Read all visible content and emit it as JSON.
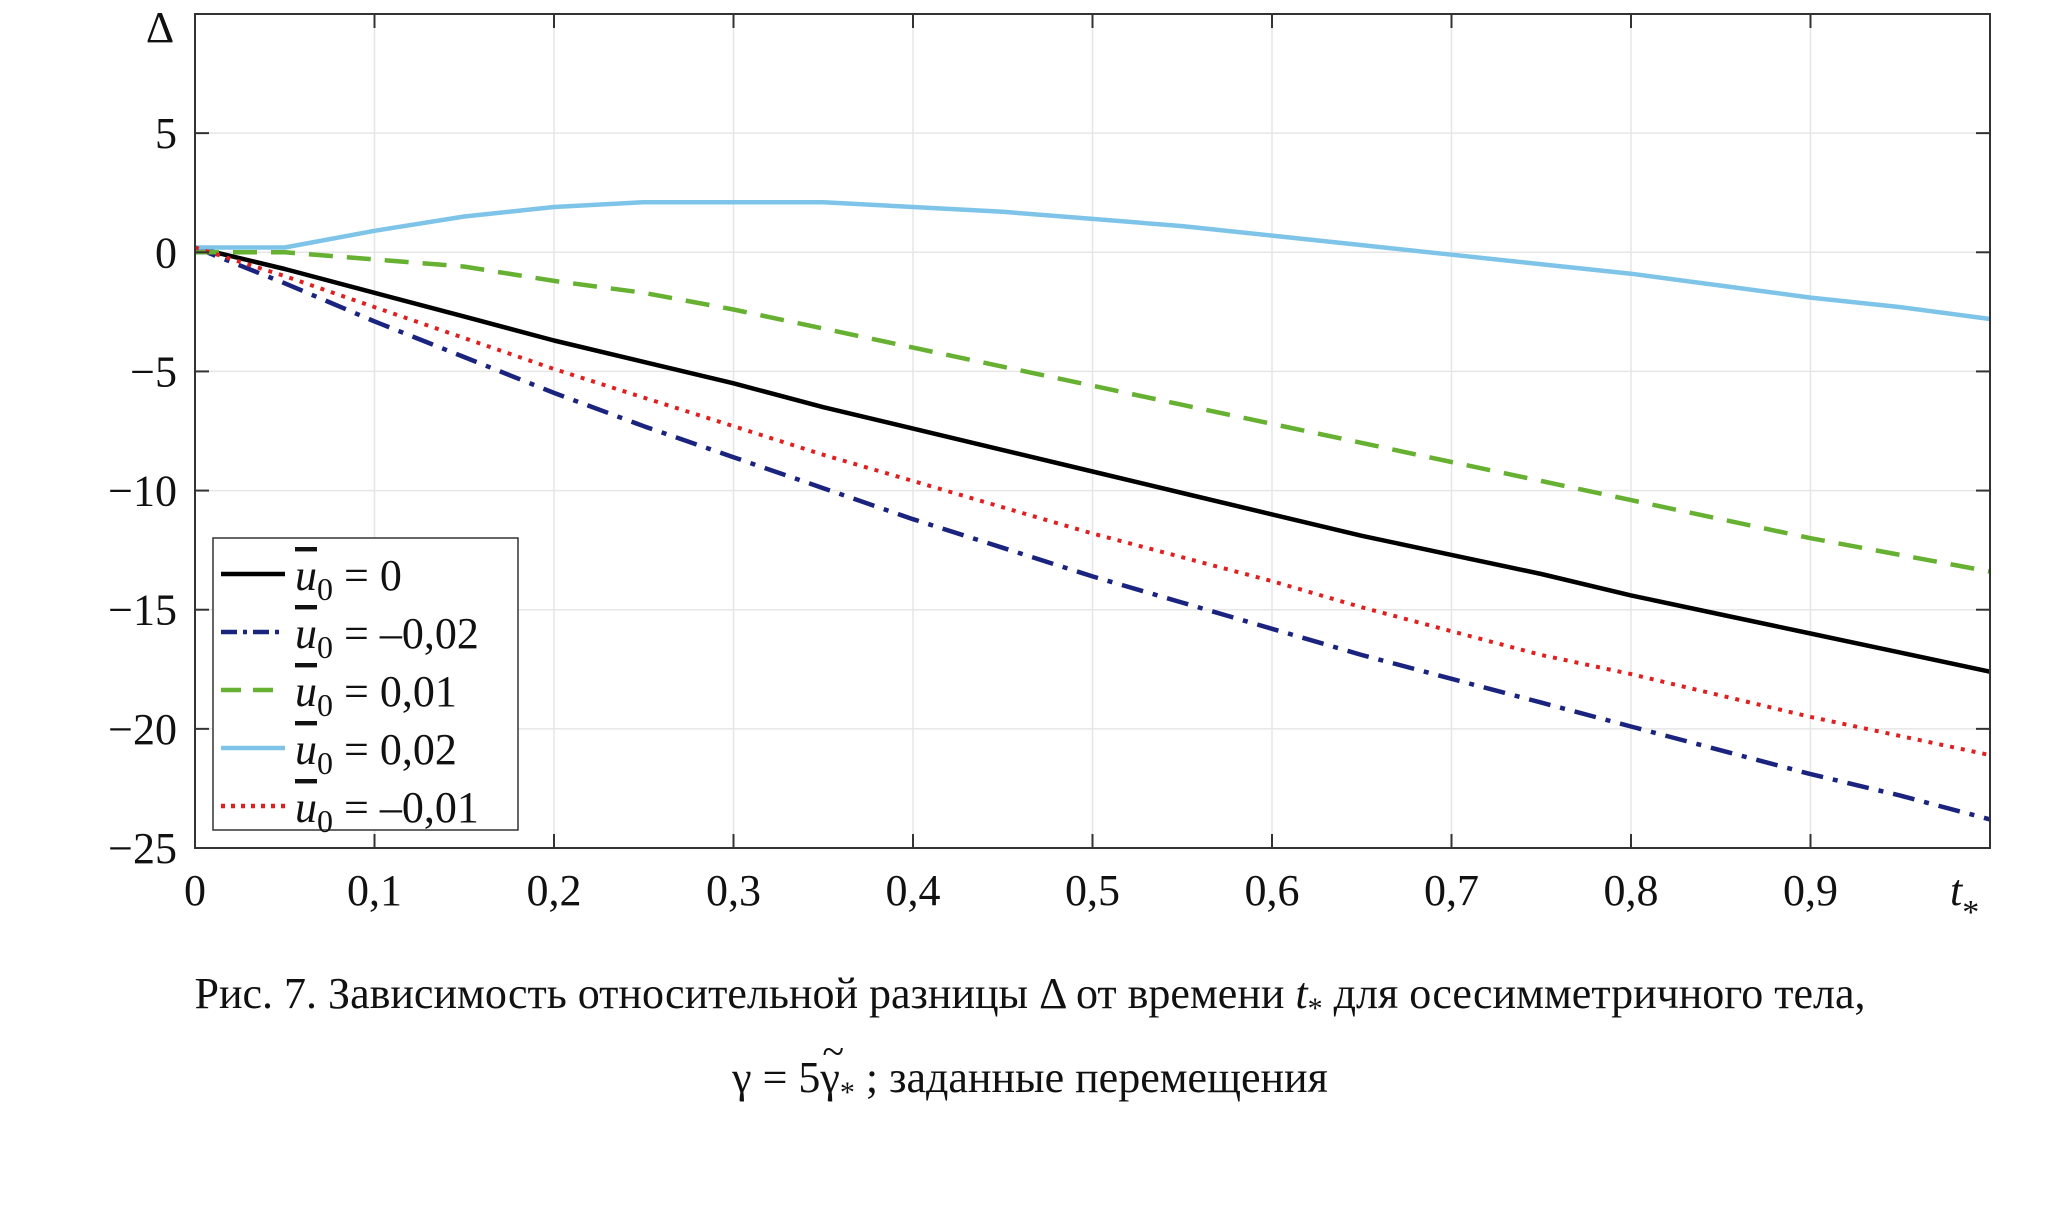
{
  "chart_data": {
    "type": "line",
    "ylabel": "Δ",
    "xlabel_main": "t",
    "xlabel_sub": "*",
    "xlim": [
      0,
      1
    ],
    "ylim": [
      -25,
      10
    ],
    "grid": true,
    "legend_position": "bottom-left",
    "x_ticks": [
      {
        "value": 0,
        "label": "0"
      },
      {
        "value": 0.1,
        "label": "0,1"
      },
      {
        "value": 0.2,
        "label": "0,2"
      },
      {
        "value": 0.3,
        "label": "0,3"
      },
      {
        "value": 0.4,
        "label": "0,4"
      },
      {
        "value": 0.5,
        "label": "0,5"
      },
      {
        "value": 0.6,
        "label": "0,6"
      },
      {
        "value": 0.7,
        "label": "0,7"
      },
      {
        "value": 0.8,
        "label": "0,8"
      },
      {
        "value": 0.9,
        "label": "0,9"
      }
    ],
    "y_ticks": [
      {
        "value": 5,
        "label": "5"
      },
      {
        "value": 0,
        "label": "0"
      },
      {
        "value": -5,
        "label": "−5"
      },
      {
        "value": -10,
        "label": "−10"
      },
      {
        "value": -15,
        "label": "−15"
      },
      {
        "value": -20,
        "label": "−20"
      },
      {
        "value": -25,
        "label": "−25"
      }
    ],
    "x": [
      0,
      0.05,
      0.1,
      0.15,
      0.2,
      0.25,
      0.3,
      0.35,
      0.4,
      0.45,
      0.5,
      0.55,
      0.6,
      0.65,
      0.7,
      0.75,
      0.8,
      0.85,
      0.9,
      0.95,
      1.0
    ],
    "series": [
      {
        "name": "ū₀ = 0",
        "legend_rest": " = 0",
        "color": "#000000",
        "style": "solid",
        "values": [
          0.2,
          -0.7,
          -1.7,
          -2.7,
          -3.7,
          -4.6,
          -5.5,
          -6.5,
          -7.4,
          -8.3,
          -9.2,
          -10.1,
          -11.0,
          -11.9,
          -12.7,
          -13.5,
          -14.4,
          -15.2,
          -16.0,
          -16.8,
          -17.6
        ]
      },
      {
        "name": "ū₀ = –0,02",
        "legend_rest": " = –0,02",
        "color": "#1a237e",
        "style": "dashdot",
        "values": [
          0.2,
          -1.3,
          -2.9,
          -4.4,
          -5.9,
          -7.3,
          -8.6,
          -9.9,
          -11.2,
          -12.4,
          -13.6,
          -14.7,
          -15.8,
          -16.9,
          -17.9,
          -18.9,
          -19.9,
          -20.9,
          -21.9,
          -22.8,
          -23.8
        ]
      },
      {
        "name": "ū₀ = 0,01",
        "legend_rest": " = 0,01",
        "color": "#66b032",
        "style": "dashed",
        "values": [
          0.0,
          0.0,
          -0.3,
          -0.6,
          -1.2,
          -1.7,
          -2.4,
          -3.2,
          -4.0,
          -4.8,
          -5.6,
          -6.4,
          -7.2,
          -8.0,
          -8.8,
          -9.6,
          -10.4,
          -11.2,
          -12.0,
          -12.7,
          -13.4
        ]
      },
      {
        "name": "ū₀ = 0,02",
        "legend_rest": " = 0,02",
        "color": "#7ec4e8",
        "style": "solid",
        "values": [
          0.2,
          0.2,
          0.9,
          1.5,
          1.9,
          2.1,
          2.1,
          2.1,
          1.9,
          1.7,
          1.4,
          1.1,
          0.7,
          0.3,
          -0.1,
          -0.5,
          -0.9,
          -1.4,
          -1.9,
          -2.3,
          -2.8
        ]
      },
      {
        "name": "ū₀ = –0,01",
        "legend_rest": " = –0,01",
        "color": "#e02020",
        "style": "dotted",
        "values": [
          0.2,
          -1.0,
          -2.3,
          -3.6,
          -4.9,
          -6.1,
          -7.3,
          -8.5,
          -9.6,
          -10.7,
          -11.8,
          -12.8,
          -13.8,
          -14.9,
          -15.9,
          -16.9,
          -17.7,
          -18.6,
          -19.5,
          -20.3,
          -21.1
        ]
      }
    ]
  },
  "caption": {
    "line1_before": "Рис. 7. Зависимость относительной разницы Δ от времени ",
    "line1_var": "t",
    "line1_sub": "*",
    "line1_after": " для осесимметричного тела,",
    "line2_gamma": "γ",
    "line2_eq": " = 5",
    "line2_gamma2": "γ",
    "line2_tilde": "~",
    "line2_sub": "*",
    "line2_after": " ; заданные перемещения"
  }
}
